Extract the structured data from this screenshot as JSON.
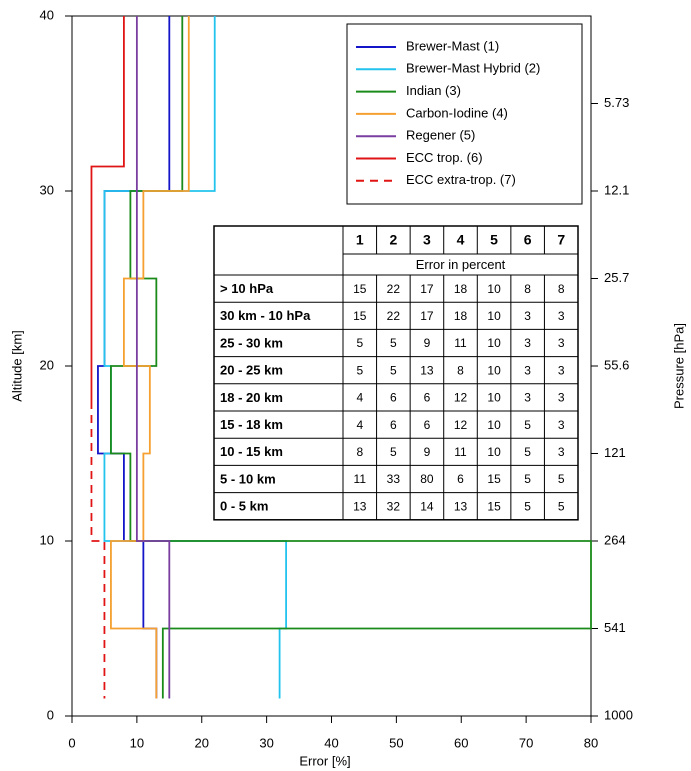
{
  "chart_data": {
    "type": "profile",
    "x_label": "Error [%]",
    "y_label": "Altitude [km]",
    "y2_label": "Pressure [hPa]",
    "xlim": [
      0,
      80
    ],
    "xticks": [
      0,
      10,
      20,
      30,
      40,
      50,
      60,
      70,
      80
    ],
    "ylim": [
      0,
      40
    ],
    "yticks": [
      0,
      10,
      20,
      30,
      40
    ],
    "pressure_ticks": [
      {
        "altitude": 35,
        "pressure": 5.73
      },
      {
        "altitude": 30,
        "pressure": 12.1
      },
      {
        "altitude": 25,
        "pressure": 25.7
      },
      {
        "altitude": 20,
        "pressure": 55.6
      },
      {
        "altitude": 15,
        "pressure": 121
      },
      {
        "altitude": 10,
        "pressure": 264
      },
      {
        "altitude": 5,
        "pressure": 541
      },
      {
        "altitude": 0,
        "pressure": 1000
      }
    ],
    "legend": "top-right",
    "series": [
      {
        "name": "Brewer-Mast (1)",
        "color": "#1414c8",
        "dashed": false,
        "x": [
          15,
          15,
          5,
          5,
          4,
          4,
          8,
          8,
          11,
          11,
          13,
          13
        ],
        "y": [
          40,
          30,
          30,
          20,
          20,
          15,
          15,
          10,
          10,
          5,
          5,
          1
        ]
      },
      {
        "name": "Brewer-Mast Hybrid (2)",
        "color": "#22c4ee",
        "dashed": false,
        "x": [
          22,
          22,
          5,
          5,
          6,
          6,
          5,
          5,
          33,
          33,
          32,
          32
        ],
        "y": [
          40,
          30,
          30,
          20,
          20,
          15,
          15,
          10,
          10,
          5,
          5,
          1
        ]
      },
      {
        "name": "Indian (3)",
        "color": "#1a8a1a",
        "dashed": false,
        "x": [
          17,
          17,
          9,
          9,
          13,
          13,
          6,
          6,
          9,
          9,
          80,
          80,
          14,
          14
        ],
        "y": [
          40,
          30,
          30,
          25,
          25,
          20,
          20,
          15,
          15,
          10,
          10,
          5,
          5,
          1
        ]
      },
      {
        "name": "Carbon-Iodine (4)",
        "color": "#f5a030",
        "dashed": false,
        "x": [
          18,
          18,
          11,
          11,
          8,
          8,
          12,
          12,
          11,
          11,
          6,
          6,
          13,
          13
        ],
        "y": [
          40,
          30,
          30,
          25,
          25,
          20,
          20,
          15,
          15,
          10,
          10,
          5,
          5,
          1
        ]
      },
      {
        "name": "Regener (5)",
        "color": "#7a3da0",
        "dashed": false,
        "x": [
          10,
          10,
          15,
          15
        ],
        "y": [
          40,
          10,
          10,
          1
        ]
      },
      {
        "name": "ECC trop. (6)",
        "color": "#e01414",
        "dashed": false,
        "x": [
          8,
          8,
          3,
          3
        ],
        "y": [
          40,
          31.4,
          31.4,
          18
        ]
      },
      {
        "name": "ECC extra-trop. (7)",
        "color": "#e01414",
        "dashed": true,
        "x": [
          3,
          3,
          5,
          5
        ],
        "y": [
          18,
          10,
          10,
          1
        ]
      }
    ]
  },
  "table": {
    "columns": [
      "1",
      "2",
      "3",
      "4",
      "5",
      "6",
      "7"
    ],
    "subheader": "Error in percent",
    "rows": [
      {
        "label": "> 10 hPa",
        "values": [
          15,
          22,
          17,
          18,
          10,
          8,
          8
        ]
      },
      {
        "label": "30 km - 10 hPa",
        "values": [
          15,
          22,
          17,
          18,
          10,
          3,
          3
        ]
      },
      {
        "label": "25 - 30 km",
        "values": [
          5,
          5,
          9,
          11,
          10,
          3,
          3
        ]
      },
      {
        "label": "20 - 25 km",
        "values": [
          5,
          5,
          13,
          8,
          10,
          3,
          3
        ]
      },
      {
        "label": "18 - 20 km",
        "values": [
          4,
          6,
          6,
          12,
          10,
          3,
          3
        ]
      },
      {
        "label": "15 - 18 km",
        "values": [
          4,
          6,
          6,
          12,
          10,
          5,
          3
        ]
      },
      {
        "label": "10 - 15 km",
        "values": [
          8,
          5,
          9,
          11,
          10,
          5,
          3
        ]
      },
      {
        "label": "5 - 10 km",
        "values": [
          11,
          33,
          80,
          6,
          15,
          5,
          5
        ]
      },
      {
        "label": "0 - 5 km",
        "values": [
          13,
          32,
          14,
          13,
          15,
          5,
          5
        ]
      }
    ]
  }
}
